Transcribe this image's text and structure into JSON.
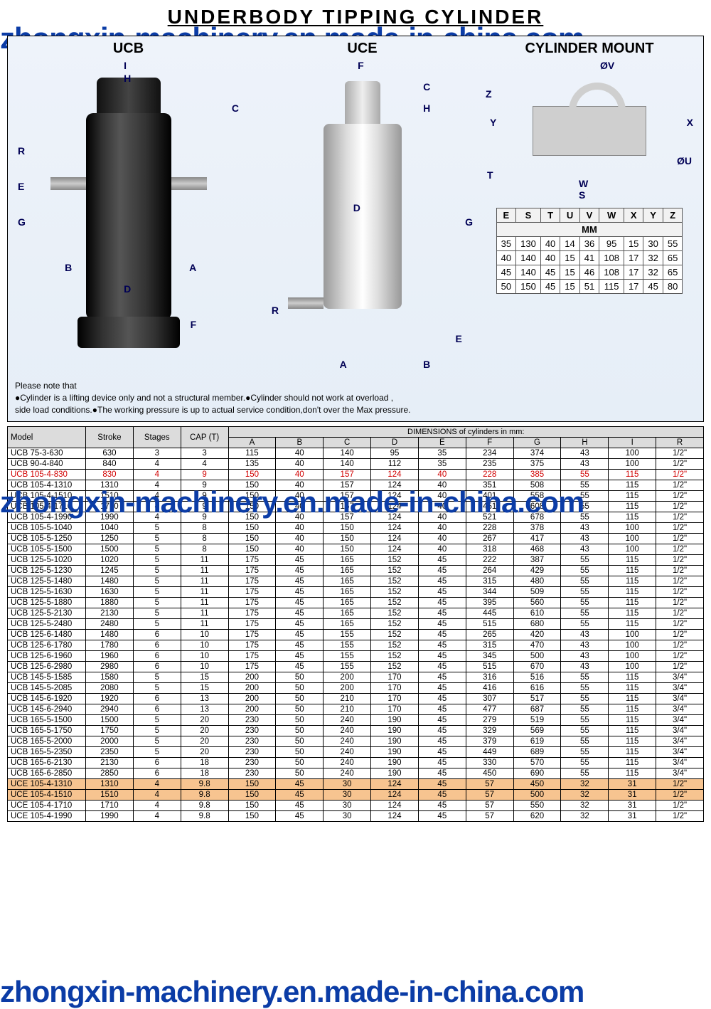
{
  "title": "UNDERBODY  TIPPING  CYLINDER",
  "watermark": "zhongxin-machinery.en.made-in-china.com",
  "diagram_labels": {
    "ucb": "UCB",
    "uce": "UCE",
    "mount": "CYLINDER MOUNT"
  },
  "dim_letters_ucb": [
    "I",
    "H",
    "C",
    "R",
    "E",
    "G",
    "B",
    "A",
    "D",
    "F"
  ],
  "dim_letters_uce": [
    "F",
    "C",
    "H",
    "D",
    "G",
    "R",
    "A",
    "B",
    "E"
  ],
  "dim_letters_mount": [
    "ØV",
    "Z",
    "Y",
    "X",
    "ØU",
    "T",
    "W",
    "S"
  ],
  "mount_table": {
    "headers": [
      "E",
      "S",
      "T",
      "U",
      "V",
      "W",
      "X",
      "Y",
      "Z"
    ],
    "unit_row": "MM",
    "rows": [
      [
        "35",
        "130",
        "40",
        "14",
        "36",
        "95",
        "15",
        "30",
        "55"
      ],
      [
        "40",
        "140",
        "40",
        "15",
        "41",
        "108",
        "17",
        "32",
        "65"
      ],
      [
        "45",
        "140",
        "45",
        "15",
        "46",
        "108",
        "17",
        "32",
        "65"
      ],
      [
        "50",
        "150",
        "45",
        "15",
        "51",
        "115",
        "17",
        "45",
        "80"
      ]
    ]
  },
  "notes": {
    "title": "Please note that",
    "lines": [
      "●Cylinder is a lifting device only and not a structural member.●Cylinder should not work at overload ,",
      "side load conditions.●The working pressure is up to actual service condition,don't over the Max pressure."
    ]
  },
  "spec_table": {
    "headers_top": [
      "Model",
      "Stroke",
      "Stages",
      "CAP (T)"
    ],
    "dim_group_label": "DIMENSIONS of cylinders in mm:",
    "dim_headers": [
      "A",
      "B",
      "C",
      "D",
      "E",
      "F",
      "G",
      "H",
      "I",
      "R"
    ],
    "rows": [
      {
        "m": "UCB 75-3-630",
        "d": [
          "630",
          "3",
          "3",
          "115",
          "40",
          "140",
          "95",
          "35",
          "234",
          "374",
          "43",
          "100",
          "1/2\""
        ],
        "c": ""
      },
      {
        "m": "UCB 90-4-840",
        "d": [
          "840",
          "4",
          "4",
          "135",
          "40",
          "140",
          "112",
          "35",
          "235",
          "375",
          "43",
          "100",
          "1/2\""
        ],
        "c": ""
      },
      {
        "m": "UCB 105-4-830",
        "d": [
          "830",
          "4",
          "9",
          "150",
          "40",
          "157",
          "124",
          "40",
          "228",
          "385",
          "55",
          "115",
          "1/2\""
        ],
        "c": "red"
      },
      {
        "m": "UCB 105-4-1310",
        "d": [
          "1310",
          "4",
          "9",
          "150",
          "40",
          "157",
          "124",
          "40",
          "351",
          "508",
          "55",
          "115",
          "1/2\""
        ],
        "c": ""
      },
      {
        "m": "UCB 105-4-1510",
        "d": [
          "1510",
          "4",
          "9",
          "150",
          "40",
          "157",
          "124",
          "40",
          "401",
          "558",
          "55",
          "115",
          "1/2\""
        ],
        "c": ""
      },
      {
        "m": "UCB 105-4-1710",
        "d": [
          "1710",
          "4",
          "9",
          "150",
          "40",
          "157",
          "124",
          "40",
          "451",
          "608",
          "55",
          "115",
          "1/2\""
        ],
        "c": ""
      },
      {
        "m": "UCB 105-4-1990",
        "d": [
          "1990",
          "4",
          "9",
          "150",
          "40",
          "157",
          "124",
          "40",
          "521",
          "678",
          "55",
          "115",
          "1/2\""
        ],
        "c": ""
      },
      {
        "m": "UCB 105-5-1040",
        "d": [
          "1040",
          "5",
          "8",
          "150",
          "40",
          "150",
          "124",
          "40",
          "228",
          "378",
          "43",
          "100",
          "1/2\""
        ],
        "c": ""
      },
      {
        "m": "UCB 105-5-1250",
        "d": [
          "1250",
          "5",
          "8",
          "150",
          "40",
          "150",
          "124",
          "40",
          "267",
          "417",
          "43",
          "100",
          "1/2\""
        ],
        "c": ""
      },
      {
        "m": "UCB 105-5-1500",
        "d": [
          "1500",
          "5",
          "8",
          "150",
          "40",
          "150",
          "124",
          "40",
          "318",
          "468",
          "43",
          "100",
          "1/2\""
        ],
        "c": ""
      },
      {
        "m": "UCB 125-5-1020",
        "d": [
          "1020",
          "5",
          "11",
          "175",
          "45",
          "165",
          "152",
          "45",
          "222",
          "387",
          "55",
          "115",
          "1/2\""
        ],
        "c": ""
      },
      {
        "m": "UCB 125-5-1230",
        "d": [
          "1245",
          "5",
          "11",
          "175",
          "45",
          "165",
          "152",
          "45",
          "264",
          "429",
          "55",
          "115",
          "1/2\""
        ],
        "c": ""
      },
      {
        "m": "UCB 125-5-1480",
        "d": [
          "1480",
          "5",
          "11",
          "175",
          "45",
          "165",
          "152",
          "45",
          "315",
          "480",
          "55",
          "115",
          "1/2\""
        ],
        "c": ""
      },
      {
        "m": "UCB 125-5-1630",
        "d": [
          "1630",
          "5",
          "11",
          "175",
          "45",
          "165",
          "152",
          "45",
          "344",
          "509",
          "55",
          "115",
          "1/2\""
        ],
        "c": ""
      },
      {
        "m": "UCB 125-5-1880",
        "d": [
          "1880",
          "5",
          "11",
          "175",
          "45",
          "165",
          "152",
          "45",
          "395",
          "560",
          "55",
          "115",
          "1/2\""
        ],
        "c": ""
      },
      {
        "m": "UCB 125-5-2130",
        "d": [
          "2130",
          "5",
          "11",
          "175",
          "45",
          "165",
          "152",
          "45",
          "445",
          "610",
          "55",
          "115",
          "1/2\""
        ],
        "c": ""
      },
      {
        "m": "UCB 125-5-2480",
        "d": [
          "2480",
          "5",
          "11",
          "175",
          "45",
          "165",
          "152",
          "45",
          "515",
          "680",
          "55",
          "115",
          "1/2\""
        ],
        "c": ""
      },
      {
        "m": "UCB 125-6-1480",
        "d": [
          "1480",
          "6",
          "10",
          "175",
          "45",
          "155",
          "152",
          "45",
          "265",
          "420",
          "43",
          "100",
          "1/2\""
        ],
        "c": ""
      },
      {
        "m": "UCB 125-6-1780",
        "d": [
          "1780",
          "6",
          "10",
          "175",
          "45",
          "155",
          "152",
          "45",
          "315",
          "470",
          "43",
          "100",
          "1/2\""
        ],
        "c": ""
      },
      {
        "m": "UCB 125-6-1960",
        "d": [
          "1960",
          "6",
          "10",
          "175",
          "45",
          "155",
          "152",
          "45",
          "345",
          "500",
          "43",
          "100",
          "1/2\""
        ],
        "c": ""
      },
      {
        "m": "UCB 125-6-2980",
        "d": [
          "2980",
          "6",
          "10",
          "175",
          "45",
          "155",
          "152",
          "45",
          "515",
          "670",
          "43",
          "100",
          "1/2\""
        ],
        "c": ""
      },
      {
        "m": "UCB 145-5-1585",
        "d": [
          "1580",
          "5",
          "15",
          "200",
          "50",
          "200",
          "170",
          "45",
          "316",
          "516",
          "55",
          "115",
          "3/4\""
        ],
        "c": ""
      },
      {
        "m": "UCB 145-5-2085",
        "d": [
          "2080",
          "5",
          "15",
          "200",
          "50",
          "200",
          "170",
          "45",
          "416",
          "616",
          "55",
          "115",
          "3/4\""
        ],
        "c": ""
      },
      {
        "m": "UCB 145-6-1920",
        "d": [
          "1920",
          "6",
          "13",
          "200",
          "50",
          "210",
          "170",
          "45",
          "307",
          "517",
          "55",
          "115",
          "3/4\""
        ],
        "c": ""
      },
      {
        "m": "UCB 145-6-2940",
        "d": [
          "2940",
          "6",
          "13",
          "200",
          "50",
          "210",
          "170",
          "45",
          "477",
          "687",
          "55",
          "115",
          "3/4\""
        ],
        "c": ""
      },
      {
        "m": "UCB 165-5-1500",
        "d": [
          "1500",
          "5",
          "20",
          "230",
          "50",
          "240",
          "190",
          "45",
          "279",
          "519",
          "55",
          "115",
          "3/4\""
        ],
        "c": ""
      },
      {
        "m": "UCB 165-5-1750",
        "d": [
          "1750",
          "5",
          "20",
          "230",
          "50",
          "240",
          "190",
          "45",
          "329",
          "569",
          "55",
          "115",
          "3/4\""
        ],
        "c": ""
      },
      {
        "m": "UCB 165-5-2000",
        "d": [
          "2000",
          "5",
          "20",
          "230",
          "50",
          "240",
          "190",
          "45",
          "379",
          "619",
          "55",
          "115",
          "3/4\""
        ],
        "c": ""
      },
      {
        "m": "UCB 165-5-2350",
        "d": [
          "2350",
          "5",
          "20",
          "230",
          "50",
          "240",
          "190",
          "45",
          "449",
          "689",
          "55",
          "115",
          "3/4\""
        ],
        "c": ""
      },
      {
        "m": "UCB 165-6-2130",
        "d": [
          "2130",
          "6",
          "18",
          "230",
          "50",
          "240",
          "190",
          "45",
          "330",
          "570",
          "55",
          "115",
          "3/4\""
        ],
        "c": ""
      },
      {
        "m": "UCB 165-6-2850",
        "d": [
          "2850",
          "6",
          "18",
          "230",
          "50",
          "240",
          "190",
          "45",
          "450",
          "690",
          "55",
          "115",
          "3/4\""
        ],
        "c": ""
      },
      {
        "m": "UCE 105-4-1310",
        "d": [
          "1310",
          "4",
          "9.8",
          "150",
          "45",
          "30",
          "124",
          "45",
          "57",
          "450",
          "32",
          "31",
          "1/2\""
        ],
        "c": "orange"
      },
      {
        "m": "UCE 105-4-1510",
        "d": [
          "1510",
          "4",
          "9.8",
          "150",
          "45",
          "30",
          "124",
          "45",
          "57",
          "500",
          "32",
          "31",
          "1/2\""
        ],
        "c": "orange"
      },
      {
        "m": "UCE 105-4-1710",
        "d": [
          "1710",
          "4",
          "9.8",
          "150",
          "45",
          "30",
          "124",
          "45",
          "57",
          "550",
          "32",
          "31",
          "1/2\""
        ],
        "c": ""
      },
      {
        "m": "UCE 105-4-1990",
        "d": [
          "1990",
          "4",
          "9.8",
          "150",
          "45",
          "30",
          "124",
          "45",
          "57",
          "620",
          "32",
          "31",
          "1/2\""
        ],
        "c": ""
      }
    ]
  },
  "colors": {
    "watermark": "#0b3ca6",
    "highlight_red": "#d10000",
    "highlight_orange_bg": "#f7c490",
    "frame_bg": "#eaf1f9"
  }
}
